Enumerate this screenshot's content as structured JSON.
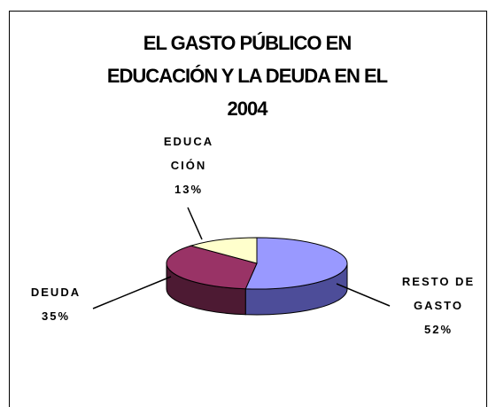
{
  "chart_data": {
    "type": "pie3d",
    "title": [
      "EL GASTO PÚBLICO EN",
      "EDUCACIÓN Y LA DEUDA EN EL",
      "2004"
    ],
    "categories": [
      "RESTO DE\nGASTO",
      "DEUDA",
      "EDUCA\nCIÓN"
    ],
    "values": [
      52,
      35,
      13
    ],
    "value_labels": [
      "52%",
      "35%",
      "13%"
    ],
    "colors": [
      "#9999ff",
      "#993366",
      "#ffffcc"
    ],
    "side_colors": [
      "#4d4d99",
      "#4d1a33",
      "#999966"
    ]
  }
}
